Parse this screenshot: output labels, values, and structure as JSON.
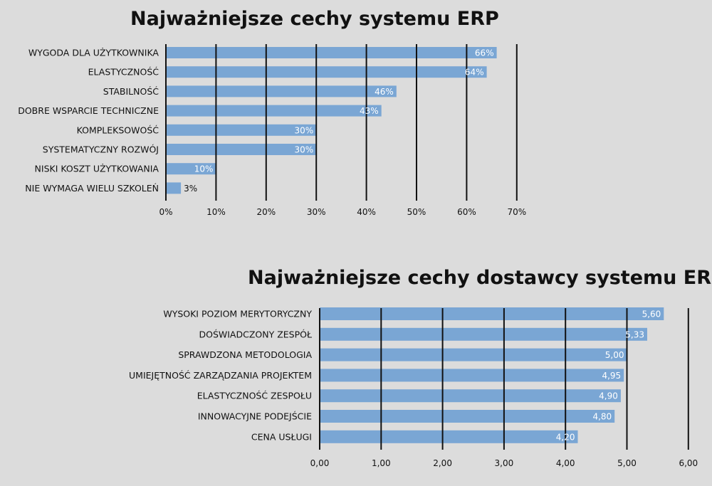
{
  "chart_data": [
    {
      "type": "bar",
      "orientation": "horizontal",
      "title": "Najważniejsze cechy systemu ERP",
      "categories": [
        "WYGODA DLA UŻYTKOWNIKA",
        "ELASTYCZNOŚĆ",
        "STABILNOŚĆ",
        "DOBRE WSPARCIE TECHNICZNE",
        "KOMPLEKSOWOŚĆ",
        "SYSTEMATYCZNY ROZWÓJ",
        "NISKI KOSZT UŻYTKOWANIA",
        "NIE WYMAGA WIELU SZKOLEŃ"
      ],
      "values": [
        66,
        64,
        46,
        43,
        30,
        30,
        10,
        3
      ],
      "value_labels": [
        "66%",
        "64%",
        "46%",
        "43%",
        "30%",
        "30%",
        "10%",
        "3%"
      ],
      "xlim": [
        0,
        70
      ],
      "ticks": [
        0,
        10,
        20,
        30,
        40,
        50,
        60,
        70
      ],
      "tick_labels": [
        "0%",
        "10%",
        "20%",
        "30%",
        "40%",
        "50%",
        "60%",
        "70%"
      ],
      "grid": true,
      "bar_color": "#7aa6d4"
    },
    {
      "type": "bar",
      "orientation": "horizontal",
      "title": "Najważniejsze cechy dostawcy systemu ERP",
      "categories": [
        "WYSOKI POZIOM MERYTORYCZNY",
        "DOŚWIADCZONY ZESPÓŁ",
        "SPRAWDZONA METODOLOGIA",
        "UMIEJĘTNOŚĆ ZARZĄDZANIA PROJEKTEM",
        "ELASTYCZNOŚĆ ZESPOŁU",
        "INNOWACYJNE PODEJŚCIE",
        "CENA USŁUGI"
      ],
      "values": [
        5.6,
        5.33,
        5.0,
        4.95,
        4.9,
        4.8,
        4.2
      ],
      "value_labels": [
        "5,60",
        "5,33",
        "5,00",
        "4,95",
        "4,90",
        "4,80",
        "4,20"
      ],
      "xlim": [
        0,
        6
      ],
      "ticks": [
        0,
        1,
        2,
        3,
        4,
        5,
        6
      ],
      "tick_labels": [
        "0,00",
        "1,00",
        "2,00",
        "3,00",
        "4,00",
        "5,00",
        "6,00"
      ],
      "grid": true,
      "bar_color": "#7aa6d4"
    }
  ]
}
